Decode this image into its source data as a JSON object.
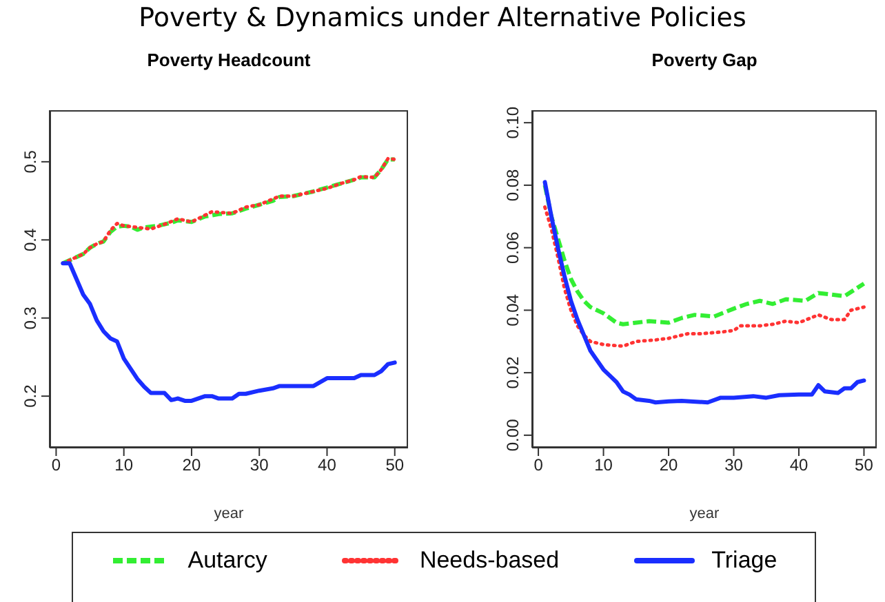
{
  "chart_data": [
    {
      "type": "line",
      "title": "Poverty Headcount",
      "xlabel": "year",
      "annotations": [
        "Poverty & Dynamics under Alternative Policies"
      ],
      "legend": "bottom",
      "xlim": [
        -0.96,
        51.96
      ],
      "xticks": [
        0,
        10,
        20,
        30,
        40,
        50
      ],
      "ylim": [
        0.134,
        0.566
      ],
      "yticks": [
        0.2,
        0.3,
        0.4,
        0.5
      ],
      "series": [
        {
          "name": "Autarcy",
          "color": "#33ee33",
          "line_style": "dashed",
          "x": [
            1,
            3,
            4,
            5,
            6,
            7,
            8,
            9,
            10,
            11,
            12,
            13,
            15,
            17,
            18,
            20,
            22,
            24,
            26,
            28,
            30,
            32,
            33,
            35,
            38,
            40,
            42,
            44,
            45,
            47,
            48,
            49,
            50
          ],
          "values": [
            0.37,
            0.378,
            0.382,
            0.39,
            0.395,
            0.398,
            0.41,
            0.417,
            0.418,
            0.417,
            0.413,
            0.416,
            0.418,
            0.422,
            0.425,
            0.423,
            0.43,
            0.433,
            0.434,
            0.44,
            0.445,
            0.45,
            0.455,
            0.456,
            0.462,
            0.467,
            0.472,
            0.477,
            0.48,
            0.48,
            0.49,
            0.503,
            0.503
          ]
        },
        {
          "name": "Needs-based",
          "color": "#ff3333",
          "line_style": "dotted",
          "x": [
            1,
            3,
            4,
            5,
            6,
            7,
            8,
            9,
            10,
            11,
            12,
            14,
            16,
            18,
            20,
            23,
            26,
            28,
            30,
            33,
            35,
            38,
            40,
            42,
            44,
            45,
            47,
            48,
            49,
            50
          ],
          "values": [
            0.37,
            0.378,
            0.382,
            0.39,
            0.395,
            0.398,
            0.412,
            0.421,
            0.418,
            0.417,
            0.416,
            0.414,
            0.42,
            0.427,
            0.423,
            0.436,
            0.434,
            0.442,
            0.445,
            0.456,
            0.456,
            0.462,
            0.466,
            0.472,
            0.477,
            0.481,
            0.48,
            0.49,
            0.504,
            0.503
          ]
        },
        {
          "name": "Triage",
          "color": "#1a2eff",
          "line_style": "solid",
          "x": [
            1,
            2,
            3,
            4,
            5,
            6,
            7,
            8,
            9,
            10,
            11,
            12,
            13,
            14,
            15,
            16,
            17,
            18,
            19,
            20,
            22,
            23,
            24,
            26,
            27,
            28,
            30,
            32,
            33,
            38,
            40,
            44,
            45,
            47,
            48,
            49,
            50
          ],
          "values": [
            0.37,
            0.37,
            0.35,
            0.33,
            0.318,
            0.297,
            0.283,
            0.274,
            0.27,
            0.248,
            0.235,
            0.222,
            0.212,
            0.204,
            0.204,
            0.204,
            0.195,
            0.197,
            0.194,
            0.194,
            0.2,
            0.2,
            0.197,
            0.197,
            0.203,
            0.203,
            0.207,
            0.21,
            0.213,
            0.213,
            0.223,
            0.223,
            0.227,
            0.227,
            0.232,
            0.241,
            0.243
          ]
        }
      ]
    },
    {
      "type": "line",
      "title": "Poverty Gap",
      "xlabel": "year",
      "xlim": [
        -0.96,
        51.96
      ],
      "xticks": [
        0,
        10,
        20,
        30,
        40,
        50
      ],
      "ylim": [
        -0.004,
        0.104
      ],
      "yticks": [
        {
          "value": 0,
          "label": "0.00"
        },
        {
          "value": 0.02,
          "label": "0.02"
        },
        {
          "value": 0.04,
          "label": "0.04"
        },
        {
          "value": 0.06,
          "label": "0.06"
        },
        {
          "value": 0.08,
          "label": "0.08"
        },
        {
          "value": 0.1,
          "label": "0.10"
        }
      ],
      "series": [
        {
          "color": "#33ee33",
          "line_style": "dashed",
          "x": [
            1,
            2,
            3,
            4,
            5,
            6,
            7,
            8,
            10,
            12,
            13,
            15,
            17,
            20,
            22,
            24,
            27,
            30,
            32,
            34,
            36,
            38,
            41,
            43,
            45,
            47,
            50
          ],
          "values": [
            0.08,
            0.07,
            0.063,
            0.056,
            0.05,
            0.046,
            0.043,
            0.041,
            0.039,
            0.036,
            0.0355,
            0.036,
            0.0365,
            0.036,
            0.0375,
            0.0385,
            0.038,
            0.0405,
            0.042,
            0.043,
            0.042,
            0.0435,
            0.043,
            0.0455,
            0.045,
            0.0445,
            0.0485
          ]
        },
        {
          "color": "#ff3333",
          "line_style": "dotted",
          "x": [
            1,
            2,
            3,
            4,
            5,
            6,
            7,
            8,
            10,
            13,
            15,
            18,
            20,
            23,
            25,
            28,
            30,
            31,
            34,
            36,
            38,
            40,
            43,
            45,
            47,
            48,
            50
          ],
          "values": [
            0.073,
            0.066,
            0.057,
            0.047,
            0.04,
            0.035,
            0.032,
            0.03,
            0.029,
            0.0285,
            0.03,
            0.0305,
            0.031,
            0.0325,
            0.0325,
            0.033,
            0.0335,
            0.035,
            0.035,
            0.0355,
            0.0365,
            0.036,
            0.0385,
            0.037,
            0.037,
            0.04,
            0.041
          ]
        },
        {
          "color": "#1a2eff",
          "line_style": "solid",
          "x": [
            1,
            2,
            3,
            4,
            5,
            6,
            7,
            8,
            9,
            10,
            11,
            12,
            13,
            14,
            15,
            17,
            18,
            20,
            22,
            26,
            28,
            30,
            33,
            35,
            37,
            40,
            42,
            43,
            44,
            46,
            47,
            48,
            49,
            50
          ],
          "values": [
            0.081,
            0.07,
            0.06,
            0.051,
            0.043,
            0.037,
            0.032,
            0.027,
            0.024,
            0.021,
            0.019,
            0.017,
            0.014,
            0.013,
            0.0115,
            0.011,
            0.0105,
            0.0108,
            0.011,
            0.0105,
            0.012,
            0.012,
            0.0125,
            0.012,
            0.0128,
            0.013,
            0.013,
            0.016,
            0.014,
            0.0135,
            0.015,
            0.015,
            0.017,
            0.0175
          ]
        }
      ]
    }
  ]
}
